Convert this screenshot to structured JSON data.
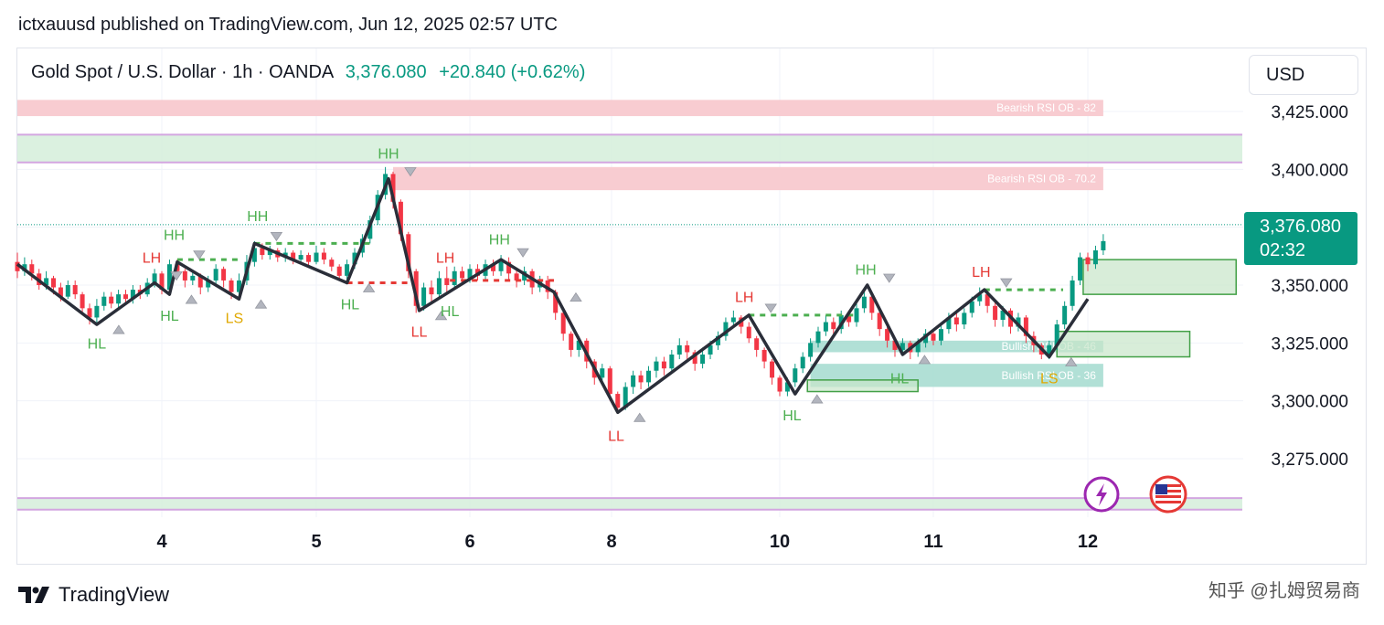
{
  "header": {
    "publisher_line": "ictxauusd published on TradingView.com, Jun 12, 2025 02:57 UTC"
  },
  "legend": {
    "symbol": "Gold Spot / U.S. Dollar · 1h · OANDA",
    "price": "3,376.080",
    "change": "+20.840 (+0.62%)"
  },
  "currency_button": "USD",
  "price_tag": {
    "price": "3,376.080",
    "countdown": "02:32"
  },
  "brand": {
    "name": "TradingView"
  },
  "watermark": "知乎 @扎姆贸易商",
  "colors": {
    "up": "#089981",
    "down": "#f23645",
    "swing": "#2a2e39",
    "hh_label": "#4caf50",
    "lh_label": "#e53935",
    "ls_label": "#e0a800"
  },
  "chart_data": {
    "type": "candlestick",
    "y_axis": {
      "min": 3252,
      "max": 3432,
      "ticks": [
        3425,
        3400,
        3375,
        3350,
        3325,
        3300,
        3275
      ],
      "tick_labels": [
        "3,425.000",
        "3,400.000",
        "3,375.000",
        "3,350.000",
        "3,325.000",
        "3,300.000",
        "3,275.000"
      ]
    },
    "x_axis": {
      "min": 3.0,
      "max": 13.0,
      "ticks": [
        {
          "label": "4",
          "x": 4.0
        },
        {
          "label": "5",
          "x": 5.0
        },
        {
          "label": "6",
          "x": 6.0
        },
        {
          "label": "8",
          "x": 6.91
        },
        {
          "label": "10",
          "x": 8.0
        },
        {
          "label": "11",
          "x": 9.0
        },
        {
          "label": "12",
          "x": 10.0
        }
      ]
    },
    "last_price": 3376.08,
    "zones": [
      {
        "kind": "bearish-ob",
        "label": "Bearish RSI OB  - 82",
        "x0": 3.0,
        "x1": 10.1,
        "y0": 3423,
        "y1": 3430
      },
      {
        "kind": "range",
        "label": "",
        "x0": 3.0,
        "x1": 11.0,
        "y0": 3403,
        "y1": 3415
      },
      {
        "kind": "bearish-ob",
        "label": "Bearish RSI OB  - 70.2",
        "x0": 5.5,
        "x1": 10.1,
        "y0": 3391,
        "y1": 3401
      },
      {
        "kind": "bullish-ob",
        "label": "Bullish RSI OB  - 46",
        "x0": 8.2,
        "x1": 10.1,
        "y0": 3321,
        "y1": 3326
      },
      {
        "kind": "bullish-ob",
        "label": "Bullish RSI OB  - 36",
        "x0": 8.2,
        "x1": 10.1,
        "y0": 3306,
        "y1": 3316
      },
      {
        "kind": "range",
        "label": "",
        "x0": 3.0,
        "x1": 11.0,
        "y0": 3253,
        "y1": 3258
      }
    ],
    "boxes": [
      {
        "x0": 9.97,
        "x1": 10.96,
        "y0": 3361,
        "y1": 3346
      },
      {
        "x0": 9.8,
        "x1": 10.66,
        "y0": 3330,
        "y1": 3319
      },
      {
        "x0": 8.18,
        "x1": 8.9,
        "y0": 3309,
        "y1": 3304
      }
    ],
    "swing_path": [
      [
        3.0,
        3359
      ],
      [
        3.55,
        3333
      ],
      [
        3.95,
        3351
      ],
      [
        4.05,
        3346
      ],
      [
        4.1,
        3360
      ],
      [
        4.5,
        3344
      ],
      [
        4.6,
        3368
      ],
      [
        5.2,
        3351
      ],
      [
        5.47,
        3396
      ],
      [
        5.67,
        3339
      ],
      [
        6.2,
        3361
      ],
      [
        6.54,
        3347
      ],
      [
        6.95,
        3295
      ],
      [
        7.8,
        3337
      ],
      [
        8.1,
        3303
      ],
      [
        8.57,
        3350
      ],
      [
        8.8,
        3320
      ],
      [
        9.33,
        3348
      ],
      [
        9.75,
        3319
      ],
      [
        10.0,
        3344
      ]
    ],
    "swing_labels": [
      {
        "text": "HL",
        "x": 3.55,
        "y": 3325,
        "kind": "hh"
      },
      {
        "text": "HH",
        "x": 4.08,
        "y": 3372,
        "kind": "hh"
      },
      {
        "text": "LH",
        "x": 3.93,
        "y": 3362,
        "kind": "lh"
      },
      {
        "text": "HL",
        "x": 4.05,
        "y": 3337,
        "kind": "hh"
      },
      {
        "text": "LS",
        "x": 4.47,
        "y": 3336,
        "kind": "ls"
      },
      {
        "text": "HH",
        "x": 4.62,
        "y": 3380,
        "kind": "hh"
      },
      {
        "text": "HL",
        "x": 5.22,
        "y": 3342,
        "kind": "hh"
      },
      {
        "text": "HH",
        "x": 5.47,
        "y": 3407,
        "kind": "hh"
      },
      {
        "text": "LH",
        "x": 5.84,
        "y": 3362,
        "kind": "lh"
      },
      {
        "text": "LL",
        "x": 5.67,
        "y": 3330,
        "kind": "lh"
      },
      {
        "text": "HL",
        "x": 5.87,
        "y": 3339,
        "kind": "hh"
      },
      {
        "text": "HH",
        "x": 6.19,
        "y": 3370,
        "kind": "hh"
      },
      {
        "text": "LL",
        "x": 6.94,
        "y": 3285,
        "kind": "lh"
      },
      {
        "text": "LH",
        "x": 7.77,
        "y": 3345,
        "kind": "lh"
      },
      {
        "text": "HL",
        "x": 8.08,
        "y": 3294,
        "kind": "hh"
      },
      {
        "text": "HH",
        "x": 8.56,
        "y": 3357,
        "kind": "hh"
      },
      {
        "text": "HL",
        "x": 8.78,
        "y": 3310,
        "kind": "hh"
      },
      {
        "text": "LH",
        "x": 9.31,
        "y": 3356,
        "kind": "lh"
      },
      {
        "text": "LS",
        "x": 9.75,
        "y": 3310,
        "kind": "ls"
      }
    ],
    "dashed_levels": [
      {
        "x0": 4.1,
        "x1": 4.5,
        "y": 3361,
        "kind": "bull"
      },
      {
        "x0": 4.6,
        "x1": 5.35,
        "y": 3368,
        "kind": "bull"
      },
      {
        "x0": 5.2,
        "x1": 5.63,
        "y": 3351,
        "kind": "bear"
      },
      {
        "x0": 5.87,
        "x1": 6.54,
        "y": 3352,
        "kind": "bear"
      },
      {
        "x0": 7.8,
        "x1": 8.5,
        "y": 3337,
        "kind": "bull"
      },
      {
        "x0": 9.33,
        "x1": 9.84,
        "y": 3348,
        "kind": "bull"
      }
    ],
    "candles": [
      [
        3.0,
        3360,
        3356,
        3364,
        3353
      ],
      [
        3.05,
        3356,
        3359,
        3362,
        3354
      ],
      [
        3.1,
        3359,
        3355,
        3361,
        3352
      ],
      [
        3.15,
        3355,
        3350,
        3357,
        3348
      ],
      [
        3.2,
        3350,
        3353,
        3356,
        3348
      ],
      [
        3.25,
        3353,
        3349,
        3354,
        3346
      ],
      [
        3.3,
        3349,
        3345,
        3351,
        3343
      ],
      [
        3.35,
        3345,
        3350,
        3352,
        3344
      ],
      [
        3.4,
        3350,
        3346,
        3352,
        3344
      ],
      [
        3.45,
        3346,
        3340,
        3347,
        3337
      ],
      [
        3.5,
        3340,
        3336,
        3342,
        3333
      ],
      [
        3.55,
        3336,
        3341,
        3344,
        3333
      ],
      [
        3.6,
        3341,
        3345,
        3347,
        3339
      ],
      [
        3.65,
        3345,
        3342,
        3347,
        3340
      ],
      [
        3.7,
        3342,
        3346,
        3348,
        3340
      ],
      [
        3.75,
        3346,
        3344,
        3348,
        3342
      ],
      [
        3.8,
        3344,
        3348,
        3350,
        3342
      ],
      [
        3.85,
        3348,
        3346,
        3350,
        3344
      ],
      [
        3.9,
        3346,
        3351,
        3353,
        3345
      ],
      [
        3.95,
        3351,
        3355,
        3357,
        3349
      ],
      [
        4.0,
        3355,
        3348,
        3356,
        3346
      ],
      [
        4.05,
        3348,
        3359,
        3361,
        3346
      ],
      [
        4.1,
        3359,
        3356,
        3361,
        3353
      ],
      [
        4.15,
        3356,
        3352,
        3357,
        3349
      ],
      [
        4.2,
        3352,
        3354,
        3356,
        3350
      ],
      [
        4.25,
        3354,
        3349,
        3355,
        3346
      ],
      [
        4.3,
        3349,
        3352,
        3354,
        3347
      ],
      [
        4.35,
        3352,
        3357,
        3359,
        3350
      ],
      [
        4.4,
        3357,
        3352,
        3358,
        3349
      ],
      [
        4.45,
        3352,
        3347,
        3353,
        3344
      ],
      [
        4.5,
        3347,
        3352,
        3355,
        3344
      ],
      [
        4.55,
        3352,
        3360,
        3363,
        3350
      ],
      [
        4.6,
        3360,
        3366,
        3369,
        3358
      ],
      [
        4.65,
        3366,
        3363,
        3368,
        3361
      ],
      [
        4.7,
        3363,
        3365,
        3367,
        3361
      ],
      [
        4.75,
        3365,
        3362,
        3366,
        3360
      ],
      [
        4.8,
        3362,
        3364,
        3366,
        3360
      ],
      [
        4.85,
        3364,
        3361,
        3365,
        3359
      ],
      [
        4.9,
        3361,
        3363,
        3365,
        3359
      ],
      [
        4.95,
        3363,
        3360,
        3364,
        3358
      ],
      [
        5.0,
        3360,
        3364,
        3367,
        3359
      ],
      [
        5.05,
        3364,
        3361,
        3366,
        3359
      ],
      [
        5.1,
        3361,
        3358,
        3362,
        3356
      ],
      [
        5.15,
        3358,
        3354,
        3359,
        3352
      ],
      [
        5.2,
        3354,
        3359,
        3361,
        3352
      ],
      [
        5.25,
        3359,
        3364,
        3366,
        3357
      ],
      [
        5.3,
        3364,
        3370,
        3372,
        3362
      ],
      [
        5.35,
        3370,
        3378,
        3380,
        3368
      ],
      [
        5.4,
        3378,
        3389,
        3391,
        3376
      ],
      [
        5.45,
        3389,
        3398,
        3401,
        3387
      ],
      [
        5.5,
        3398,
        3386,
        3399,
        3383
      ],
      [
        5.55,
        3386,
        3372,
        3387,
        3369
      ],
      [
        5.6,
        3372,
        3356,
        3373,
        3353
      ],
      [
        5.65,
        3356,
        3341,
        3357,
        3338
      ],
      [
        5.7,
        3341,
        3349,
        3351,
        3339
      ],
      [
        5.75,
        3349,
        3346,
        3352,
        3343
      ],
      [
        5.8,
        3346,
        3353,
        3356,
        3344
      ],
      [
        5.85,
        3353,
        3350,
        3358,
        3347
      ],
      [
        5.9,
        3350,
        3356,
        3358,
        3348
      ],
      [
        5.95,
        3356,
        3353,
        3358,
        3351
      ],
      [
        6.0,
        3353,
        3357,
        3359,
        3351
      ],
      [
        6.05,
        3357,
        3354,
        3359,
        3352
      ],
      [
        6.1,
        3354,
        3359,
        3361,
        3352
      ],
      [
        6.15,
        3359,
        3356,
        3361,
        3354
      ],
      [
        6.2,
        3356,
        3360,
        3363,
        3354
      ],
      [
        6.25,
        3360,
        3355,
        3362,
        3352
      ],
      [
        6.3,
        3355,
        3352,
        3357,
        3349
      ],
      [
        6.35,
        3352,
        3356,
        3358,
        3350
      ],
      [
        6.4,
        3356,
        3349,
        3357,
        3346
      ],
      [
        6.45,
        3349,
        3352,
        3354,
        3347
      ],
      [
        6.5,
        3352,
        3347,
        3354,
        3344
      ],
      [
        6.55,
        3347,
        3338,
        3348,
        3335
      ],
      [
        6.6,
        3338,
        3329,
        3339,
        3326
      ],
      [
        6.65,
        3329,
        3322,
        3330,
        3319
      ],
      [
        6.7,
        3322,
        3326,
        3328,
        3319
      ],
      [
        6.75,
        3326,
        3317,
        3327,
        3314
      ],
      [
        6.8,
        3317,
        3310,
        3318,
        3307
      ],
      [
        6.85,
        3310,
        3314,
        3316,
        3307
      ],
      [
        6.9,
        3314,
        3303,
        3315,
        3300
      ],
      [
        6.95,
        3303,
        3297,
        3304,
        3295
      ],
      [
        7.0,
        3297,
        3306,
        3308,
        3296
      ],
      [
        7.05,
        3306,
        3311,
        3313,
        3303
      ],
      [
        7.1,
        3311,
        3308,
        3313,
        3305
      ],
      [
        7.15,
        3308,
        3313,
        3315,
        3306
      ],
      [
        7.2,
        3313,
        3317,
        3319,
        3310
      ],
      [
        7.25,
        3317,
        3314,
        3319,
        3311
      ],
      [
        7.3,
        3314,
        3320,
        3322,
        3312
      ],
      [
        7.35,
        3320,
        3324,
        3327,
        3318
      ],
      [
        7.4,
        3324,
        3321,
        3326,
        3318
      ],
      [
        7.45,
        3321,
        3316,
        3322,
        3313
      ],
      [
        7.5,
        3316,
        3320,
        3323,
        3314
      ],
      [
        7.55,
        3320,
        3324,
        3326,
        3318
      ],
      [
        7.6,
        3324,
        3328,
        3330,
        3322
      ],
      [
        7.65,
        3328,
        3334,
        3336,
        3326
      ],
      [
        7.7,
        3334,
        3336,
        3339,
        3332
      ],
      [
        7.75,
        3336,
        3332,
        3337,
        3329
      ],
      [
        7.8,
        3332,
        3327,
        3334,
        3325
      ],
      [
        7.85,
        3327,
        3322,
        3328,
        3319
      ],
      [
        7.9,
        3322,
        3317,
        3323,
        3314
      ],
      [
        7.95,
        3317,
        3310,
        3318,
        3307
      ],
      [
        8.0,
        3310,
        3304,
        3311,
        3302
      ],
      [
        8.05,
        3304,
        3308,
        3310,
        3302
      ],
      [
        8.1,
        3308,
        3314,
        3316,
        3306
      ],
      [
        8.15,
        3314,
        3319,
        3321,
        3312
      ],
      [
        8.2,
        3319,
        3325,
        3327,
        3317
      ],
      [
        8.25,
        3325,
        3330,
        3332,
        3323
      ],
      [
        8.3,
        3330,
        3334,
        3337,
        3328
      ],
      [
        8.35,
        3334,
        3331,
        3336,
        3329
      ],
      [
        8.4,
        3331,
        3337,
        3339,
        3329
      ],
      [
        8.45,
        3337,
        3334,
        3339,
        3332
      ],
      [
        8.5,
        3334,
        3340,
        3342,
        3332
      ],
      [
        8.55,
        3340,
        3345,
        3348,
        3338
      ],
      [
        8.6,
        3345,
        3338,
        3346,
        3335
      ],
      [
        8.65,
        3338,
        3331,
        3339,
        3328
      ],
      [
        8.7,
        3331,
        3326,
        3332,
        3323
      ],
      [
        8.75,
        3326,
        3322,
        3327,
        3319
      ],
      [
        8.8,
        3322,
        3325,
        3327,
        3320
      ],
      [
        8.85,
        3325,
        3321,
        3326,
        3318
      ],
      [
        8.9,
        3321,
        3325,
        3327,
        3319
      ],
      [
        8.95,
        3325,
        3329,
        3331,
        3323
      ],
      [
        9.0,
        3329,
        3326,
        3331,
        3324
      ],
      [
        9.05,
        3326,
        3331,
        3333,
        3324
      ],
      [
        9.1,
        3331,
        3336,
        3338,
        3329
      ],
      [
        9.15,
        3336,
        3333,
        3338,
        3330
      ],
      [
        9.2,
        3333,
        3338,
        3340,
        3331
      ],
      [
        9.25,
        3338,
        3343,
        3345,
        3336
      ],
      [
        9.3,
        3343,
        3346,
        3349,
        3341
      ],
      [
        9.35,
        3346,
        3341,
        3347,
        3338
      ],
      [
        9.4,
        3341,
        3335,
        3343,
        3332
      ],
      [
        9.45,
        3335,
        3339,
        3341,
        3332
      ],
      [
        9.5,
        3339,
        3332,
        3340,
        3329
      ],
      [
        9.55,
        3332,
        3336,
        3338,
        3330
      ],
      [
        9.6,
        3336,
        3328,
        3337,
        3325
      ],
      [
        9.65,
        3328,
        3324,
        3330,
        3321
      ],
      [
        9.7,
        3324,
        3320,
        3325,
        3318
      ],
      [
        9.75,
        3320,
        3324,
        3326,
        3318
      ],
      [
        9.8,
        3324,
        3333,
        3335,
        3322
      ],
      [
        9.85,
        3333,
        3341,
        3343,
        3331
      ],
      [
        9.9,
        3341,
        3352,
        3354,
        3339
      ],
      [
        9.95,
        3352,
        3362,
        3364,
        3350
      ],
      [
        10.0,
        3362,
        3359,
        3364,
        3356
      ],
      [
        10.05,
        3359,
        3365,
        3367,
        3357
      ],
      [
        10.1,
        3365,
        3369,
        3372,
        3363
      ]
    ]
  }
}
